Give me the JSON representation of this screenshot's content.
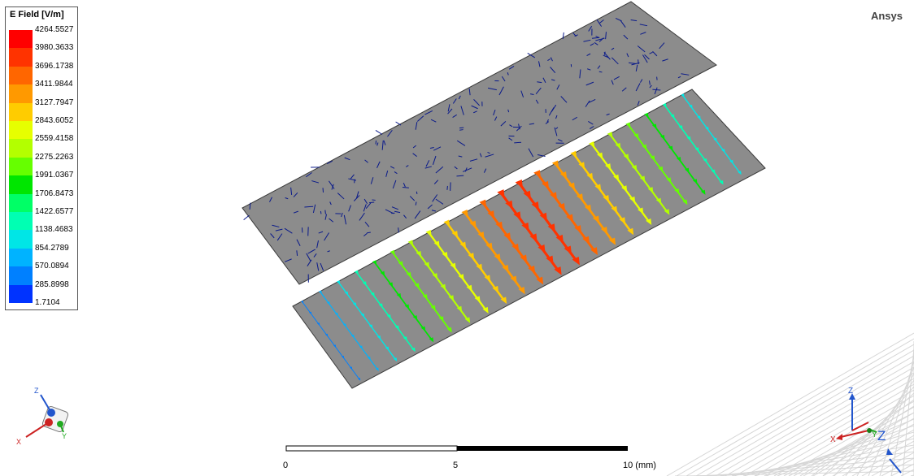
{
  "brand": "Ansys",
  "legend": {
    "title": "E Field [V/m]",
    "values": [
      "4264.5527",
      "3980.3633",
      "3696.1738",
      "3411.9844",
      "3127.7947",
      "2843.6052",
      "2559.4158",
      "2275.2263",
      "1991.0367",
      "1706.8473",
      "1422.6577",
      "1138.4683",
      "854.2789",
      "570.0894",
      "285.8998",
      "1.7104"
    ],
    "colors": [
      "#ff0000",
      "#ff3300",
      "#ff6600",
      "#ff9900",
      "#ffcc00",
      "#e6ff00",
      "#b3ff00",
      "#66ff00",
      "#00e600",
      "#00ff66",
      "#00ffb3",
      "#00e6e6",
      "#00b3ff",
      "#0080ff",
      "#0033ff",
      "#0000ff"
    ]
  },
  "scale": {
    "labels": [
      "0",
      "5",
      "10 (mm)"
    ]
  },
  "triad_left": {
    "x": "X",
    "y": "Y",
    "z": "Z"
  },
  "triad_right": {
    "x": "X",
    "y": "Y",
    "z": "Z",
    "big_z": "Z"
  },
  "colors": {
    "plate": "#8c8c8c",
    "plate_edge": "#3a3a3a",
    "grid": "#d6d6d6"
  }
}
